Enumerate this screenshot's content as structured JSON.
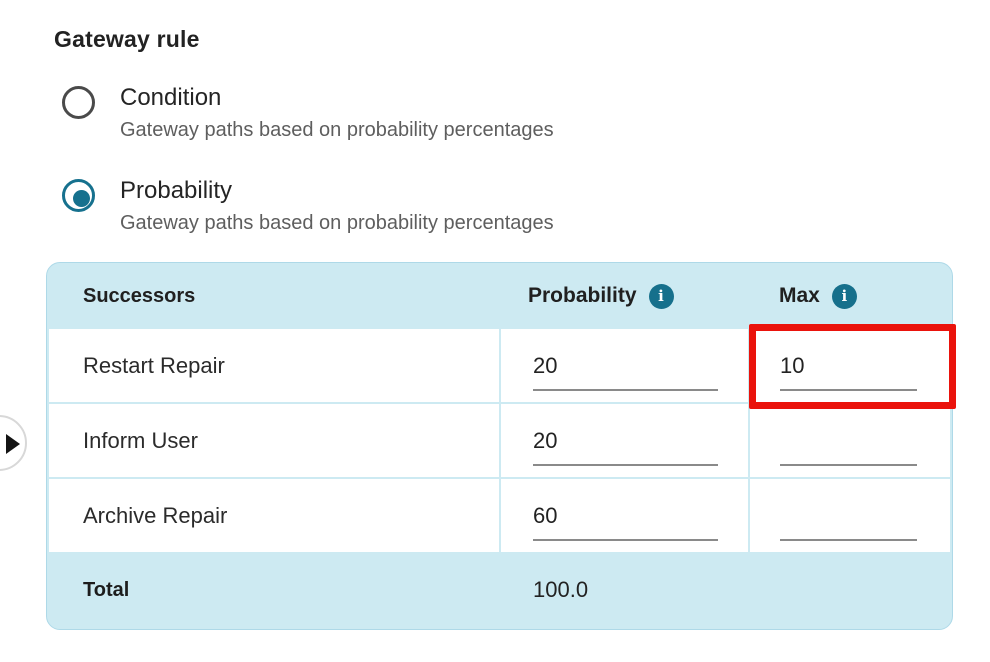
{
  "page": {
    "title": "Gateway rule"
  },
  "options": [
    {
      "label": "Condition",
      "description": "Gateway paths based on probability percentages",
      "selected": false
    },
    {
      "label": "Probability",
      "description": "Gateway paths based on probability percentages",
      "selected": true
    }
  ],
  "table": {
    "headers": {
      "successors": "Successors",
      "probability": "Probability",
      "max": "Max"
    },
    "rows": [
      {
        "name": "Restart Repair",
        "probability": "20",
        "max": "10",
        "max_highlighted": true
      },
      {
        "name": "Inform User",
        "probability": "20",
        "max": "",
        "max_highlighted": false
      },
      {
        "name": "Archive Repair",
        "probability": "60",
        "max": "",
        "max_highlighted": false
      }
    ],
    "total": {
      "label": "Total",
      "value": "100.0"
    }
  },
  "icons": {
    "info_glyph": "i",
    "expand": "chevron-right"
  },
  "colors": {
    "teal_accent": "#16718e",
    "info_icon_bg": "#16708c",
    "table_bg": "#cdeaf2",
    "table_border": "#aed9e8",
    "highlight_red": "#ea130c",
    "input_underline": "#8a8a8a",
    "label_text": "#242424",
    "description_text": "#5e5e5e"
  }
}
